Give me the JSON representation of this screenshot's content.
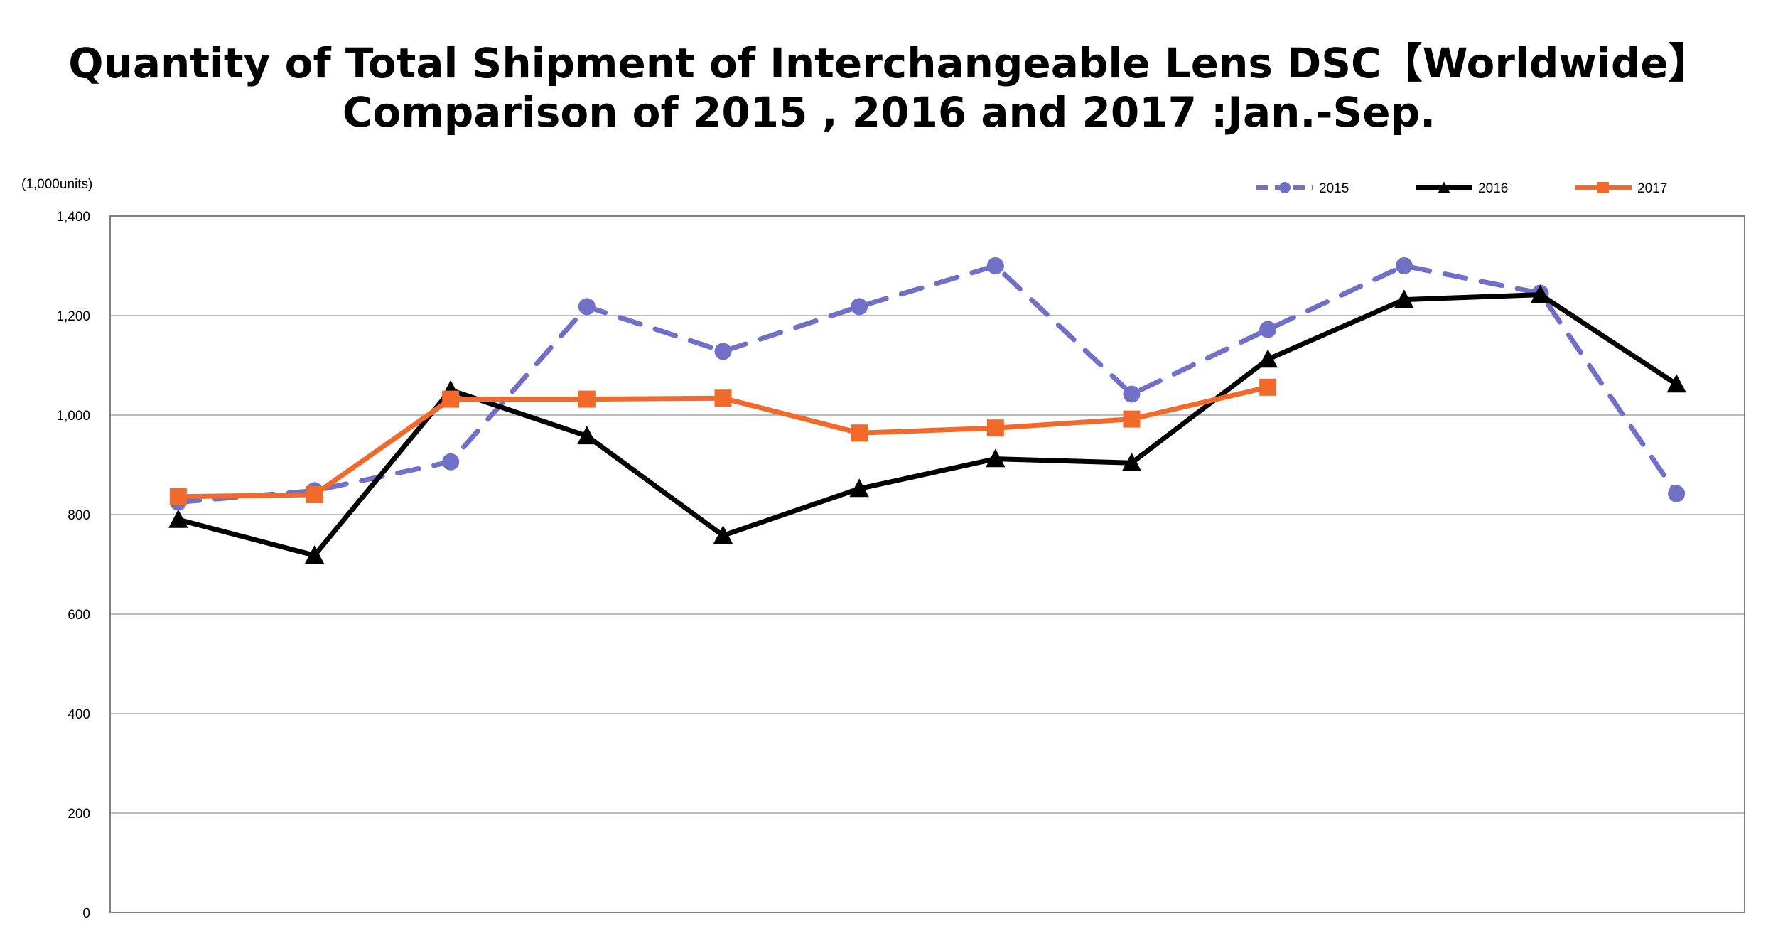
{
  "chart_data": {
    "type": "line",
    "title": "Quantity of Total Shipment of Interchangeable Lens DSC【Worldwide】",
    "subtitle": "Comparison of 2015 , 2016 and 2017 :Jan.-Sep.",
    "ylabel": "(1,000units)",
    "xlabel": "",
    "ylim": [
      0,
      1400
    ],
    "y_ticks": [
      "0",
      "200",
      "400",
      "600",
      "800",
      "1,000",
      "1,200",
      "1,400"
    ],
    "y_tick_values": [
      0,
      200,
      400,
      600,
      800,
      1000,
      1200,
      1400
    ],
    "x_count": 12,
    "grid": "horizontal",
    "legend_position": "top-right",
    "series": [
      {
        "name": "2015",
        "color": "#7070c8",
        "style": "dashed",
        "marker": "circle",
        "values": [
          825,
          848,
          906,
          1218,
          1128,
          1218,
          1300,
          1042,
          1172,
          1300,
          1245,
          842
        ]
      },
      {
        "name": "2016",
        "color": "#000000",
        "style": "solid",
        "marker": "triangle",
        "values": [
          790,
          718,
          1050,
          958,
          758,
          852,
          912,
          904,
          1112,
          1232,
          1242,
          1062
        ]
      },
      {
        "name": "2017",
        "color": "#f26a2b",
        "style": "solid",
        "marker": "square",
        "values": [
          836,
          840,
          1032,
          1032,
          1034,
          964,
          974,
          992,
          1056
        ]
      }
    ]
  }
}
